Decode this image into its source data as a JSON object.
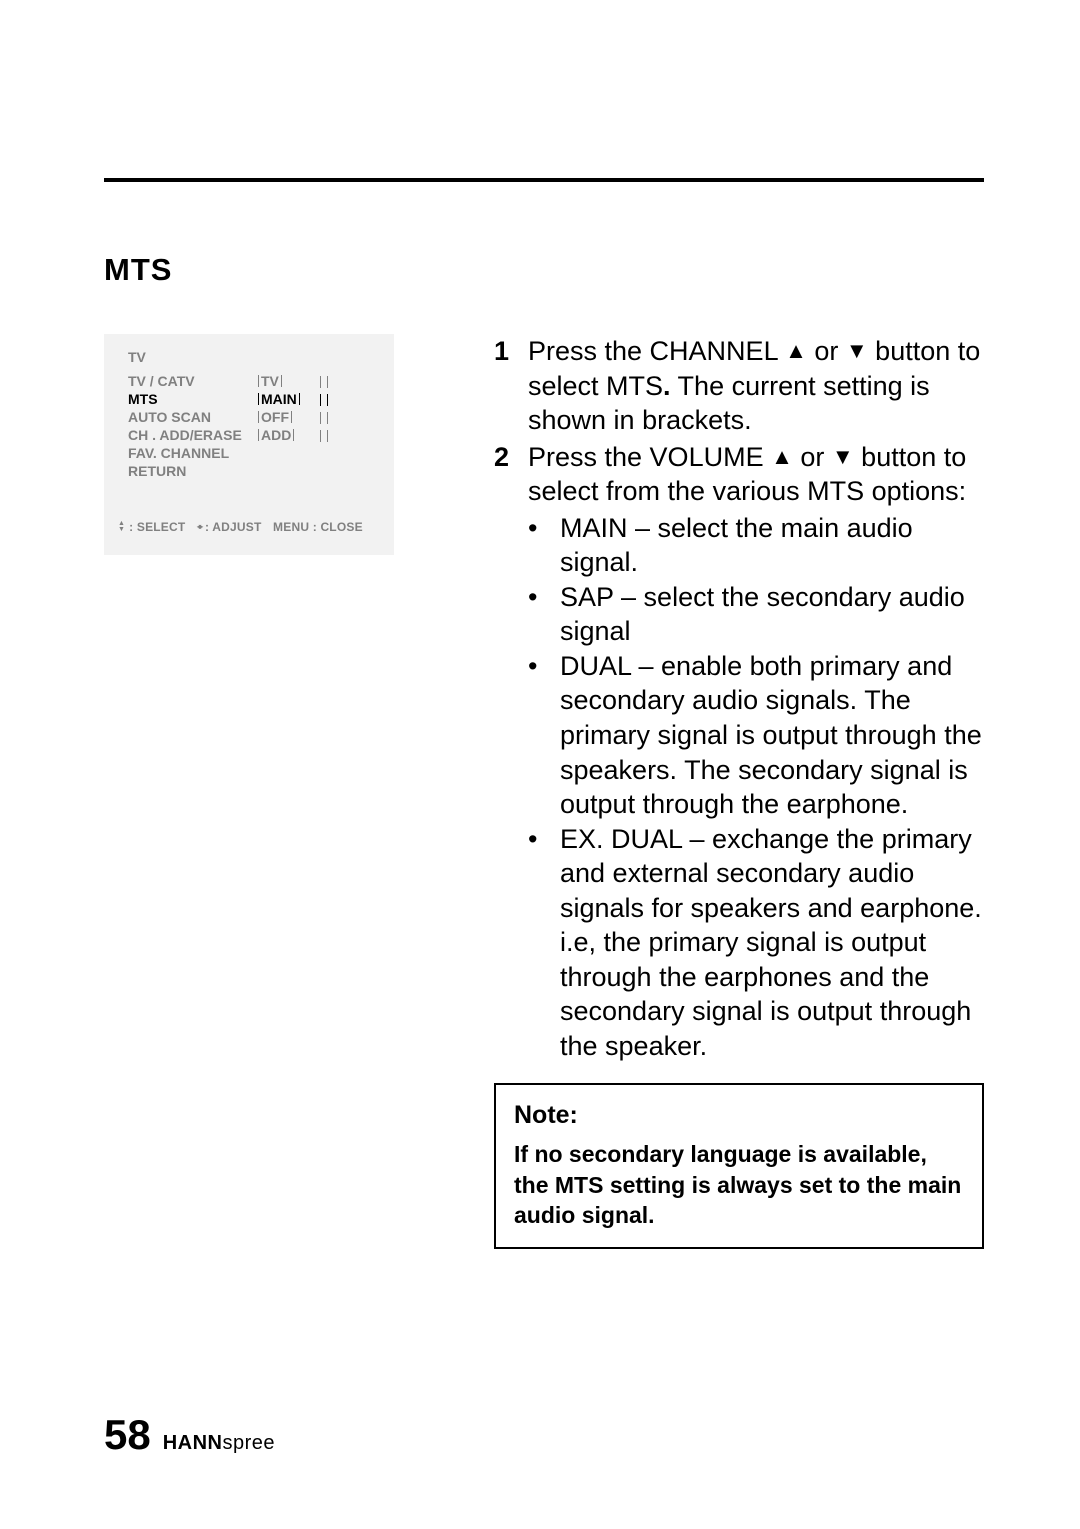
{
  "section": {
    "title": "MTS"
  },
  "osd": {
    "title": "TV",
    "rows": [
      {
        "label": "TV / CATV",
        "value": "TV",
        "active": false
      },
      {
        "label": "MTS",
        "value": "MAIN",
        "active": true
      },
      {
        "label": "AUTO SCAN",
        "value": "OFF",
        "active": false
      },
      {
        "label": "CH . ADD/ERASE",
        "value": "ADD",
        "active": false
      },
      {
        "label": "FAV. CHANNEL",
        "value": "",
        "active": false
      },
      {
        "label": "RETURN",
        "value": "",
        "active": false
      }
    ],
    "help": {
      "select": ": SELECT",
      "adjust": ": ADJUST",
      "menu_close": "MENU : CLOSE"
    },
    "colors": {
      "background": "#f2f2f2",
      "text_inactive": "#808080",
      "text_active": "#000000"
    },
    "fontsize": 14
  },
  "steps": [
    {
      "num": "1",
      "pre": "Press the CHANNEL ",
      "mid": " or ",
      "post": " button to select MTS",
      "tail": " The current setting is shown in brackets.",
      "period": "."
    },
    {
      "num": "2",
      "pre": "Press the VOLUME ",
      "mid": " or ",
      "post": " button to select from the various MTS options:",
      "tail": "",
      "period": ""
    }
  ],
  "bullets": [
    "MAIN – select the main audio signal.",
    "SAP – select the secondary audio signal",
    "DUAL – enable both primary and secondary audio signals. The primary signal is output through the speakers. The secondary signal is output through the earphone.",
    "EX. DUAL – exchange the primary and external secondary audio signals for speakers and earphone. i.e, the primary signal is output through the earphones and the secondary signal is output through the speaker."
  ],
  "note": {
    "title": "Note:",
    "body": "If no secondary language is available, the MTS setting is always set to the main audio signal."
  },
  "footer": {
    "page": "58",
    "brand_bold": "HANN",
    "brand_light": "spree"
  },
  "glyphs": {
    "up": "▲",
    "down": "▼",
    "left": "◂",
    "right": "▸",
    "bullet": "•"
  },
  "colors": {
    "page_bg": "#ffffff",
    "text": "#000000",
    "rule": "#000000",
    "note_border": "#000000"
  }
}
